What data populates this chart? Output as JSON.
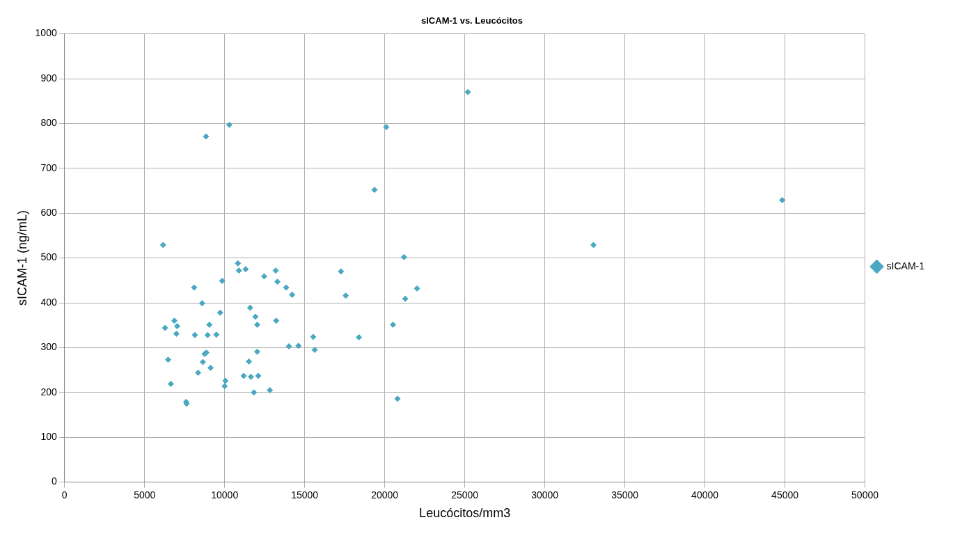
{
  "chart_data": {
    "type": "scatter",
    "title": "sICAM-1 vs. Leucócitos",
    "xlabel": "Leucócitos/mm3",
    "ylabel": "sICAM-1 (ng/mL)",
    "xlim": [
      0,
      50000
    ],
    "xticks": [
      0,
      5000,
      10000,
      15000,
      20000,
      25000,
      30000,
      35000,
      40000,
      45000,
      50000
    ],
    "ylim": [
      0,
      1000
    ],
    "yticks": [
      0,
      100,
      200,
      300,
      400,
      500,
      600,
      700,
      800,
      900,
      1000
    ],
    "grid": true,
    "legend": "right",
    "marker": "diamond",
    "series": [
      {
        "name": "sICAM-1",
        "color": "#4aa8c0",
        "x": [
          6156,
          21203,
          10828,
          10891,
          11313,
          13188,
          17266,
          12469,
          9844,
          13297,
          8094,
          13844,
          22016,
          14219,
          17563,
          21281,
          8594,
          11594,
          9719,
          11922,
          6859,
          13219,
          6281,
          7031,
          9047,
          12031,
          20516,
          6984,
          8141,
          8938,
          9484,
          15531,
          18391,
          14016,
          14609,
          15625,
          12031,
          8750,
          8859,
          6469,
          8641,
          11516,
          9125,
          8344,
          11188,
          11641,
          12094,
          6641,
          10047,
          10000,
          12828,
          11828,
          20797,
          7594,
          7625,
          8835,
          10290,
          20100,
          25190,
          19360,
          33040,
          44830
        ],
        "values": [
          529,
          502,
          488,
          472,
          475,
          472,
          470,
          459,
          449,
          447,
          434,
          434,
          432,
          418,
          416,
          409,
          399,
          389,
          378,
          369,
          360,
          360,
          344,
          348,
          351,
          351,
          351,
          331,
          328,
          328,
          329,
          324,
          323,
          303,
          304,
          295,
          291,
          286,
          289,
          273,
          268,
          269,
          255,
          244,
          237,
          235,
          237,
          219,
          226,
          214,
          205,
          200,
          186,
          179,
          175,
          771,
          797,
          792,
          870,
          652,
          529,
          629
        ]
      }
    ]
  }
}
